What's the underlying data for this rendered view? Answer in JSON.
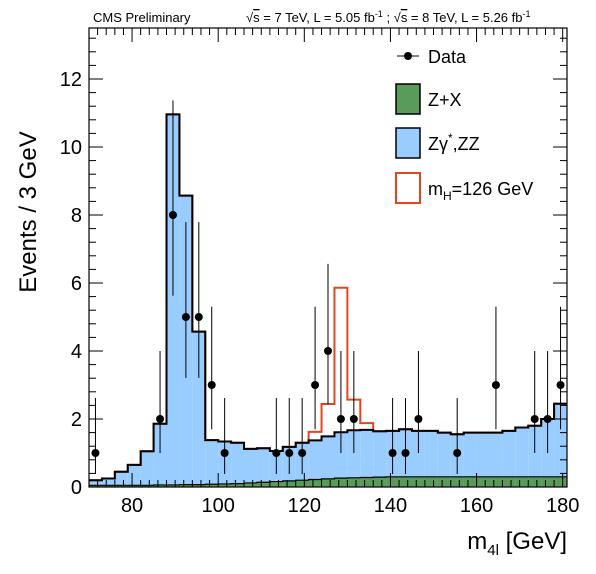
{
  "chart_data": {
    "type": "histogram",
    "header_left": "CMS Preliminary",
    "header_right": {
      "part1_root": "s",
      "part1_text": " = 7 TeV, L = 5.05 fb",
      "part1_sup": "-1",
      "sep": " ; ",
      "part2_root": "s",
      "part2_text": " = 8 TeV, L = 5.26 fb",
      "part2_sup": "-1"
    },
    "xlabel": {
      "main": "m",
      "sub": "4l",
      "unit": " [GeV]"
    },
    "ylabel": "Events / 3 GeV",
    "xlim": [
      70,
      181
    ],
    "ylim": [
      0,
      13.5
    ],
    "xticks": [
      80,
      100,
      120,
      140,
      160,
      180
    ],
    "yticks": [
      0,
      2,
      4,
      6,
      8,
      10,
      12
    ],
    "bin_edges": [
      70,
      73,
      76,
      79,
      82,
      85,
      88,
      91,
      94,
      97,
      100,
      103,
      106,
      109,
      112,
      115,
      118,
      121,
      124,
      127,
      130,
      133,
      136,
      139,
      142,
      145,
      148,
      151,
      154,
      157,
      160,
      163,
      166,
      169,
      172,
      175,
      178,
      181
    ],
    "series": [
      {
        "name": "Z+X",
        "color": "#5a9a5a",
        "values": [
          0.05,
          0.05,
          0.05,
          0.05,
          0.05,
          0.06,
          0.06,
          0.07,
          0.07,
          0.08,
          0.09,
          0.1,
          0.12,
          0.14,
          0.16,
          0.18,
          0.2,
          0.22,
          0.24,
          0.26,
          0.27,
          0.28,
          0.29,
          0.3,
          0.3,
          0.3,
          0.3,
          0.3,
          0.3,
          0.3,
          0.3,
          0.3,
          0.3,
          0.3,
          0.3,
          0.3,
          0.3
        ]
      },
      {
        "name": "Zγ*,ZZ",
        "color": "#99ccff",
        "values": [
          0.15,
          0.2,
          0.4,
          0.6,
          1.0,
          1.8,
          10.9,
          8.5,
          4.5,
          1.3,
          1.25,
          1.2,
          1.0,
          1.0,
          0.9,
          1.0,
          1.1,
          1.15,
          1.25,
          1.35,
          1.4,
          1.4,
          1.35,
          1.35,
          1.4,
          1.35,
          1.35,
          1.3,
          1.25,
          1.3,
          1.3,
          1.3,
          1.35,
          1.45,
          1.5,
          1.7,
          2.15
        ]
      },
      {
        "name": "m_H=126 GeV",
        "color": "#e8431c",
        "values": [
          0.15,
          0.2,
          0.4,
          0.6,
          1.0,
          1.8,
          10.9,
          8.5,
          4.5,
          1.3,
          1.25,
          1.2,
          1.0,
          1.0,
          0.9,
          1.0,
          1.1,
          1.4,
          2.2,
          5.6,
          2.3,
          1.6,
          1.35,
          1.35,
          1.4,
          1.35,
          1.35,
          1.3,
          1.25,
          1.3,
          1.3,
          1.3,
          1.35,
          1.45,
          1.5,
          1.7,
          2.15
        ]
      },
      {
        "name": "Data",
        "color": "#000000",
        "x": [
          71.5,
          86.5,
          89.5,
          92.5,
          95.5,
          98.5,
          101.5,
          113.5,
          116.5,
          119.5,
          122.5,
          125.5,
          128.5,
          131.5,
          140.5,
          143.5,
          146.5,
          155.5,
          164.5,
          173.5,
          176.5,
          179.5
        ],
        "y": [
          1,
          2,
          8,
          5,
          5,
          3,
          1,
          1,
          1,
          1,
          3,
          4,
          2,
          2,
          1,
          1,
          2,
          1,
          3,
          2,
          2,
          3
        ]
      }
    ],
    "legend": {
      "position": "top-right",
      "data_label": "Data",
      "zx_label": "Z+X",
      "zz_label_main": "Zγ",
      "zz_label_sup": "*",
      "zz_label_rest": ",ZZ",
      "higgs_label_main": "m",
      "higgs_label_sub": "H",
      "higgs_label_rest": "=126 GeV"
    }
  }
}
